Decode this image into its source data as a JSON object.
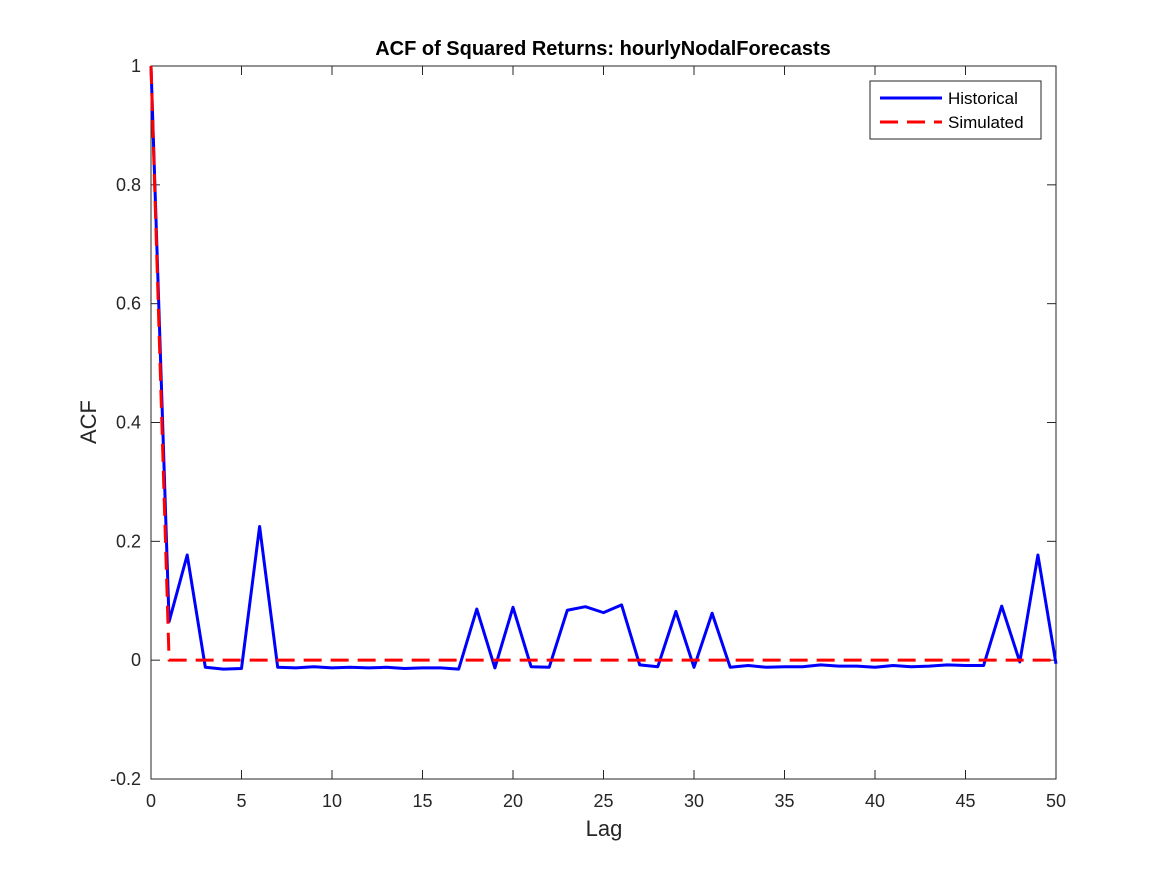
{
  "chart_data": {
    "type": "line",
    "title": "ACF of Squared Returns: hourlyNodalForecasts",
    "xlabel": "Lag",
    "ylabel": "ACF",
    "xlim": [
      0,
      50
    ],
    "ylim": [
      -0.2,
      1
    ],
    "xticks": [
      0,
      5,
      10,
      15,
      20,
      25,
      30,
      35,
      40,
      45,
      50
    ],
    "yticks": [
      -0.2,
      0,
      0.2,
      0.4,
      0.6,
      0.8,
      1
    ],
    "ytick_labels": [
      "-0.2",
      "0",
      "0.2",
      "0.4",
      "0.6",
      "0.8",
      "1"
    ],
    "grid": false,
    "box": true,
    "legend_position": "top-right",
    "x": [
      0,
      1,
      2,
      3,
      4,
      5,
      6,
      7,
      8,
      9,
      10,
      11,
      12,
      13,
      14,
      15,
      16,
      17,
      18,
      19,
      20,
      21,
      22,
      23,
      24,
      25,
      26,
      27,
      28,
      29,
      30,
      31,
      32,
      33,
      34,
      35,
      36,
      37,
      38,
      39,
      40,
      41,
      42,
      43,
      44,
      45,
      46,
      47,
      48,
      49,
      50
    ],
    "series": [
      {
        "name": "Historical",
        "color": "#0000ff",
        "style": "solid",
        "values": [
          1.0,
          0.065,
          0.177,
          -0.012,
          -0.015,
          -0.014,
          0.225,
          -0.012,
          -0.013,
          -0.011,
          -0.013,
          -0.012,
          -0.013,
          -0.012,
          -0.014,
          -0.013,
          -0.013,
          -0.015,
          0.086,
          -0.013,
          0.089,
          -0.011,
          -0.012,
          0.084,
          0.09,
          0.08,
          0.093,
          -0.008,
          -0.011,
          0.082,
          -0.012,
          0.079,
          -0.012,
          -0.009,
          -0.012,
          -0.011,
          -0.011,
          -0.008,
          -0.01,
          -0.01,
          -0.012,
          -0.009,
          -0.011,
          -0.01,
          -0.008,
          -0.009,
          -0.009,
          0.091,
          -0.003,
          0.177,
          -0.006
        ]
      },
      {
        "name": "Simulated",
        "color": "#ff0000",
        "style": "dashed",
        "values": [
          1.0,
          0.0,
          0.0,
          0.0,
          0.0,
          0.0,
          0.0,
          0.0,
          0.0,
          0.0,
          0.0,
          0.0,
          0.0,
          0.0,
          0.0,
          0.0,
          0.0,
          0.0,
          0.0,
          0.0,
          0.0,
          0.0,
          0.0,
          0.0,
          0.0,
          0.0,
          0.0,
          0.0,
          0.0,
          0.0,
          0.0,
          0.0,
          0.0,
          0.0,
          0.0,
          0.0,
          0.0,
          0.0,
          0.0,
          0.0,
          0.0,
          0.0,
          0.0,
          0.0,
          0.0,
          0.0,
          0.0,
          0.0,
          0.0,
          0.0,
          0.0
        ]
      }
    ]
  }
}
